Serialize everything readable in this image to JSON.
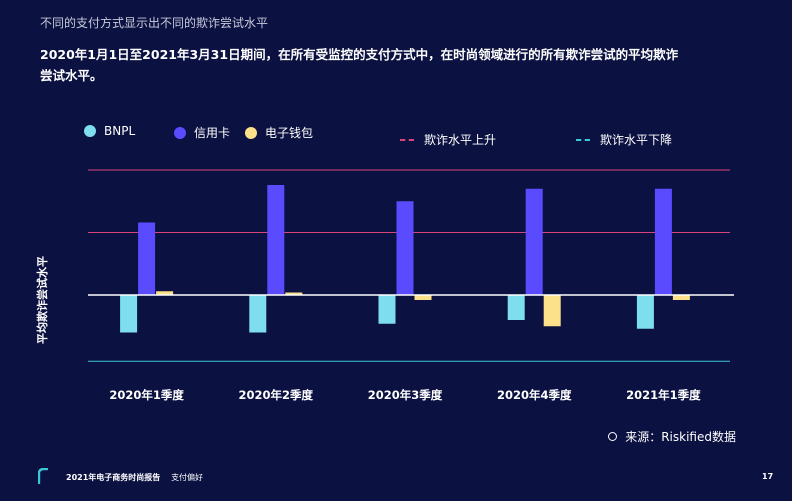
{
  "header": {
    "top_title": "不同的支付方式显示出不同的欺诈尝试水平",
    "subtitle": "2020年1月1日至2021年3月31日期间，在所有受监控的支付方式中，在时尚领域进行的所有欺诈尝试的平均欺诈尝试水平。"
  },
  "legend": {
    "series": [
      {
        "label": "BNPL",
        "color": "#7fdeee"
      },
      {
        "label": "信用卡",
        "color": "#5b4bff"
      },
      {
        "label": "电子钱包",
        "color": "#fde18a"
      }
    ],
    "rising_label": "欺诈水平上升",
    "rising_color": "#d9457a",
    "falling_label": "欺诈水平下降",
    "falling_color": "#3cc7d6"
  },
  "chart_data": {
    "type": "bar",
    "categories": [
      "2020年1季度",
      "2020年2季度",
      "2020年3季度",
      "2020年4季度",
      "2021年1季度"
    ],
    "series": [
      {
        "name": "BNPL",
        "color": "#7fdeee",
        "values": [
          -0.3,
          -0.3,
          -0.23,
          -0.2,
          -0.27
        ]
      },
      {
        "name": "信用卡",
        "color": "#5b4bff",
        "values": [
          0.58,
          0.88,
          0.75,
          0.85,
          0.85
        ]
      },
      {
        "name": "电子钱包",
        "color": "#fde18a",
        "values": [
          0.03,
          0.02,
          -0.04,
          -0.25,
          -0.04
        ]
      }
    ],
    "reference_lines": [
      {
        "type": "rising",
        "values": [
          1.0,
          0.5
        ],
        "color": "#d9457a"
      },
      {
        "type": "falling",
        "values": [
          -0.53
        ],
        "color": "#3cc7d6"
      }
    ],
    "ylabel": "平均欺诈尝试水平",
    "ylim": [
      -0.6,
      1.0
    ]
  },
  "footer": {
    "report": "2021年电子商务时尚报告",
    "section": "支付偏好",
    "page": "17"
  },
  "source": {
    "text": "来源：Riskified数据"
  }
}
